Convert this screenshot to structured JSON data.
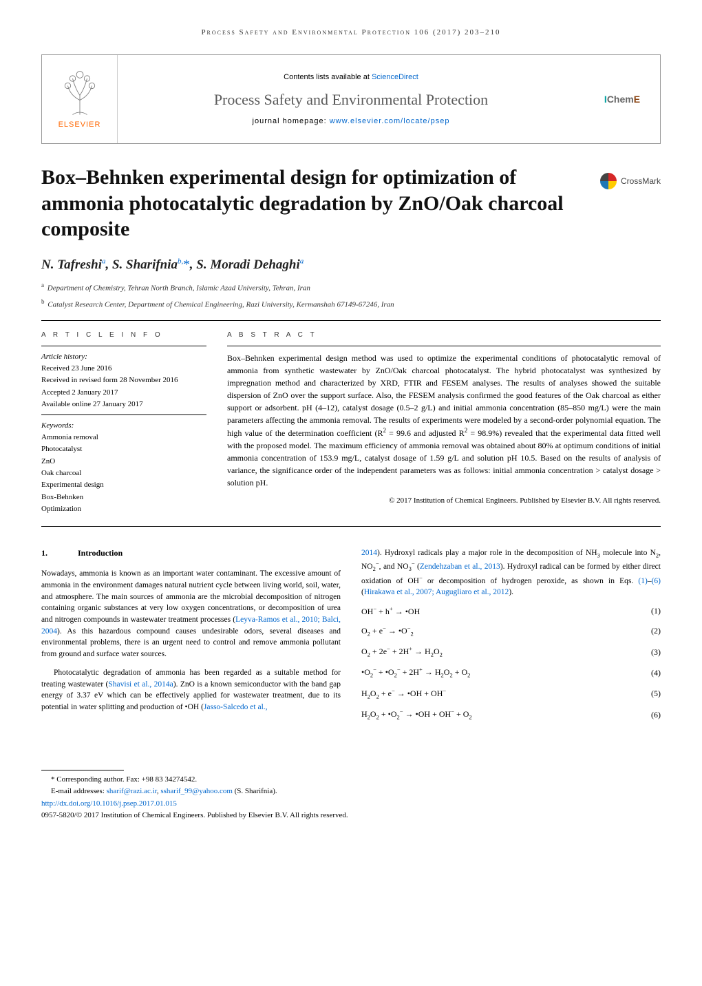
{
  "running_header": "Process Safety and Environmental Protection 106 (2017) 203–210",
  "journal_header": {
    "contents_prefix": "Contents lists available at ",
    "contents_link": "ScienceDirect",
    "journal_title": "Process Safety and Environmental Protection",
    "homepage_prefix": "journal homepage: ",
    "homepage_link": "www.elsevier.com/locate/psep",
    "elsevier_label": "ELSEVIER",
    "elsevier_tree_color": "#777777",
    "icheme_i": "I",
    "icheme_chem": "Chem",
    "icheme_e": "E"
  },
  "crossmark_label": "CrossMark",
  "article_title": "Box–Behnken experimental design for optimization of ammonia photocatalytic degradation by ZnO/Oak charcoal composite",
  "authors_html": "N. Tafreshi<sup>a</sup>, S. Sharifnia<sup>b,</sup><span class='star'>*</span>, S. Moradi Dehaghi<sup>a</sup>",
  "affiliations": [
    {
      "sup": "a",
      "text": "Department of Chemistry, Tehran North Branch, Islamic Azad University, Tehran, Iran"
    },
    {
      "sup": "b",
      "text": "Catalyst Research Center, Department of Chemical Engineering, Razi University, Kermanshah 67149-67246, Iran"
    }
  ],
  "article_info": {
    "label": "A R T I C L E   I N F O",
    "history_label": "Article history:",
    "history": [
      "Received 23 June 2016",
      "Received in revised form 28 November 2016",
      "Accepted 2 January 2017",
      "Available online 27 January 2017"
    ],
    "keywords_label": "Keywords:",
    "keywords": [
      "Ammonia removal",
      "Photocatalyst",
      "ZnO",
      "Oak charcoal",
      "Experimental design",
      "Box-Behnken",
      "Optimization"
    ]
  },
  "abstract": {
    "label": "A B S T R A C T",
    "text_html": "Box–Behnken experimental design method was used to optimize the experimental conditions of photocatalytic removal of ammonia from synthetic wastewater by ZnO/Oak charcoal photocatalyst. The hybrid photocatalyst was synthesized by impregnation method and characterized by XRD, FTIR and FESEM analyses. The results of analyses showed the suitable dispersion of ZnO over the support surface. Also, the FESEM analysis confirmed the good features of the Oak charcoal as either support or adsorbent. pH (4–12), catalyst dosage (0.5–2 g/L) and initial ammonia concentration (85–850 mg/L) were the main parameters affecting the ammonia removal. The results of experiments were modeled by a second-order polynomial equation. The high value of the determination coefficient (R<sup>2</sup> = 99.6 and adjusted R<sup>2</sup> = 98.9%) revealed that the experimental data fitted well with the proposed model. The maximum efficiency of ammonia removal was obtained about 80% at optimum conditions of initial ammonia concentration of 153.9 mg/L, catalyst dosage of 1.59 g/L and solution pH 10.5. Based on the results of analysis of variance, the significance order of the independent parameters was as follows: initial ammonia concentration > catalyst dosage > solution pH.",
    "copyright": "© 2017 Institution of Chemical Engineers. Published by Elsevier B.V. All rights reserved."
  },
  "body": {
    "intro_heading_num": "1.",
    "intro_heading_text": "Introduction",
    "left_paras": [
      "Nowadays, ammonia is known as an important water contaminant. The excessive amount of ammonia in the environment damages natural nutrient cycle between living world, soil, water, and atmosphere. The main sources of ammonia are the microbial decomposition of nitrogen containing organic substances at very low oxygen concentrations, or decomposition of urea and nitrogen compounds in wastewater treatment processes (<span class='cite'>Leyva-Ramos et al., 2010; Balci, 2004</span>). As this hazardous compound causes undesirable odors, several diseases and environmental problems, there is an urgent need to control and remove ammonia pollutant from ground and surface water sources.",
      "Photocatalytic degradation of ammonia has been regarded as a suitable method for treating wastewater (<span class='cite'>Shavisi et al., 2014a</span>). ZnO is a known semiconductor with the band gap energy of 3.37 eV which can be effectively applied for wastewater treatment, due to its potential in water splitting and production of •OH (<span class='cite'>Jasso-Salcedo et al.,</span>"
    ],
    "right_intro": "<span class='cite'>2014</span>). Hydroxyl radicals play a major role in the decomposition of NH<sub>3</sub> molecule into N<sub>2</sub>, NO<sub>2</sub><sup>−</sup>, and NO<sub>3</sub><sup>−</sup> (<span class='cite'>Zendehzaban et al., 2013</span>). Hydroxyl radical can be formed by either direct oxidation of OH<sup>−</sup> or decomposition of hydrogen peroxide, as shown in Eqs. <span class='cite'>(1)</span>–<span class='cite'>(6)</span> (<span class='cite'>Hirakawa et al., 2007; Augugliaro et al., 2012</span>).",
    "equations": [
      {
        "lhs": "OH<sup>−</sup> + h<sup>+</sup> → •OH",
        "num": "(1)"
      },
      {
        "lhs": "O<sub>2</sub> + e<sup>−</sup> → •O<sup>−</sup><sub>2</sub>",
        "num": "(2)"
      },
      {
        "lhs": "O<sub>2</sub> + 2e<sup>−</sup> + 2H<sup>+</sup> → H<sub>2</sub>O<sub>2</sub>",
        "num": "(3)"
      },
      {
        "lhs": "•O<sub>2</sub><sup>−</sup> + •O<sub>2</sub><sup>−</sup> + 2H<sup>+</sup> → H<sub>2</sub>O<sub>2</sub> + O<sub>2</sub>",
        "num": "(4)"
      },
      {
        "lhs": "H<sub>2</sub>O<sub>2</sub> + e<sup>−</sup> → •OH + OH<sup>−</sup>",
        "num": "(5)"
      },
      {
        "lhs": "H<sub>2</sub>O<sub>2</sub> + •O<sub>2</sub><sup>−</sup> → •OH + OH<sup>−</sup> + O<sub>2</sub>",
        "num": "(6)"
      }
    ]
  },
  "footer": {
    "corresponding": "* Corresponding author. Fax: +98 83 34274542.",
    "email_prefix": "E-mail addresses: ",
    "email1": "sharif@razi.ac.ir",
    "email_sep": ", ",
    "email2": "ssharif_99@yahoo.com",
    "email_suffix": " (S. Sharifnia).",
    "doi": "http://dx.doi.org/10.1016/j.psep.2017.01.015",
    "issn": "0957-5820/© 2017 Institution of Chemical Engineers. Published by Elsevier B.V. All rights reserved."
  },
  "colors": {
    "link": "#0066cc",
    "elsevier_orange": "#ff6600",
    "text": "#000000",
    "border": "#999999"
  }
}
